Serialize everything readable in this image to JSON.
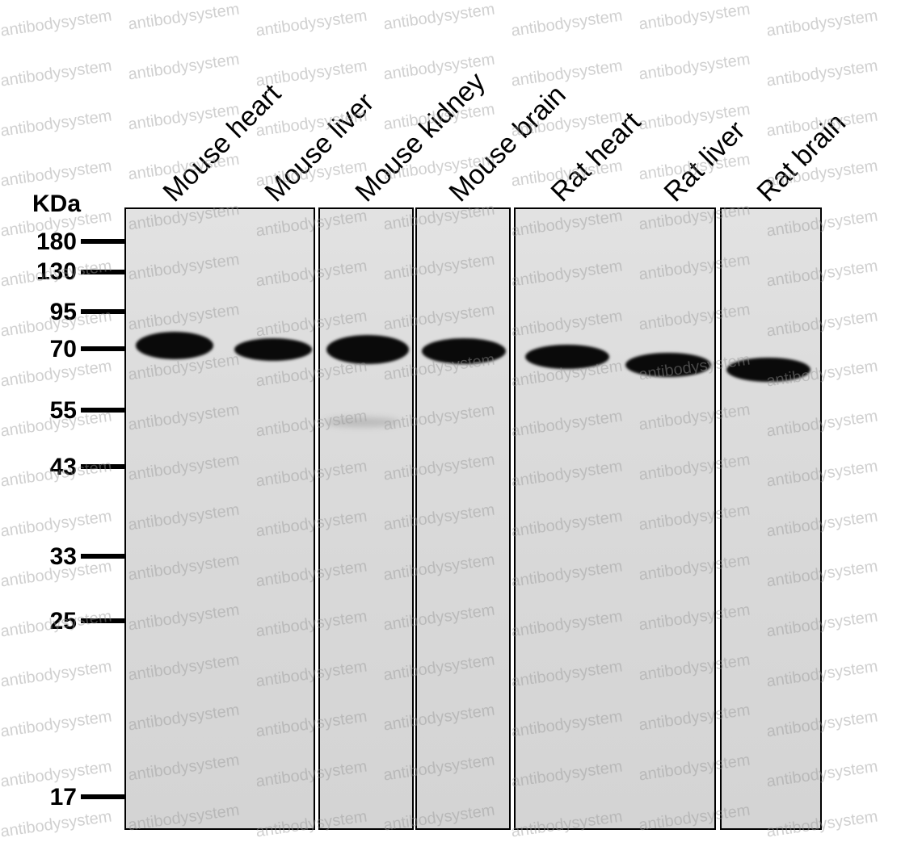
{
  "unit_label": "KDa",
  "lanes": [
    "Mouse heart",
    "Mouse liver",
    "Mouse kidney",
    "Mouse brain",
    "Rat heart",
    "Rat liver",
    "Rat brain"
  ],
  "markers": [
    "180",
    "130",
    "95",
    "70",
    "55",
    "43",
    "33",
    "25",
    "17"
  ],
  "watermark": "antibodysystem"
}
